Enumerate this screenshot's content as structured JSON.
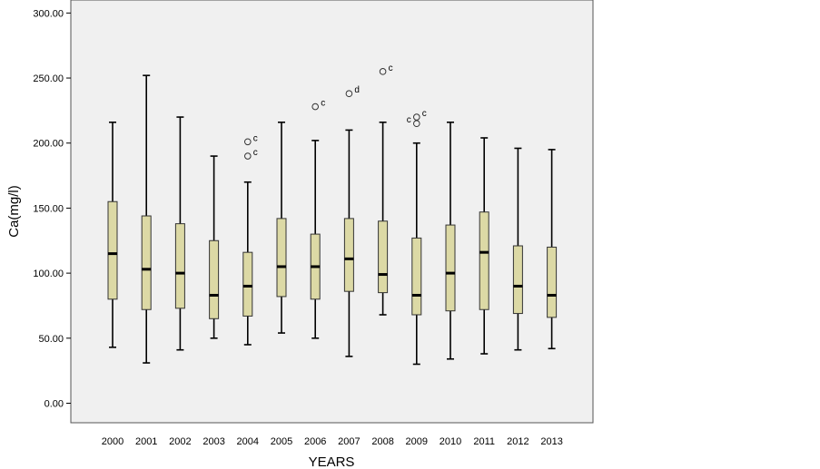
{
  "chart_data": {
    "type": "boxplot",
    "xlabel": "YEARS",
    "ylabel": "Ca(mg/l)",
    "ylim": [
      -15,
      310
    ],
    "yticks": [
      0,
      50,
      100,
      150,
      200,
      250,
      300
    ],
    "ytick_labels": [
      "0.00",
      "50.00",
      "100.00",
      "150.00",
      "200.00",
      "250.00",
      "300.00"
    ],
    "grid": false,
    "background": "#f0f0f0",
    "box_color": "#dcd9a5",
    "categories": [
      "2000",
      "2001",
      "2002",
      "2003",
      "2004",
      "2005",
      "2006",
      "2007",
      "2008",
      "2009",
      "2010",
      "2011",
      "2012",
      "2013"
    ],
    "boxes": [
      {
        "min": 43,
        "q1": 80,
        "median": 115,
        "q3": 155,
        "max": 216
      },
      {
        "min": 31,
        "q1": 72,
        "median": 103,
        "q3": 144,
        "max": 252
      },
      {
        "min": 41,
        "q1": 73,
        "median": 100,
        "q3": 138,
        "max": 220
      },
      {
        "min": 50,
        "q1": 65,
        "median": 83,
        "q3": 125,
        "max": 190
      },
      {
        "min": 45,
        "q1": 67,
        "median": 90,
        "q3": 116,
        "max": 170
      },
      {
        "min": 54,
        "q1": 82,
        "median": 105,
        "q3": 142,
        "max": 216
      },
      {
        "min": 50,
        "q1": 80,
        "median": 105,
        "q3": 130,
        "max": 202
      },
      {
        "min": 36,
        "q1": 86,
        "median": 111,
        "q3": 142,
        "max": 210
      },
      {
        "min": 68,
        "q1": 85,
        "median": 99,
        "q3": 140,
        "max": 216
      },
      {
        "min": 30,
        "q1": 68,
        "median": 83,
        "q3": 127,
        "max": 200
      },
      {
        "min": 34,
        "q1": 71,
        "median": 100,
        "q3": 137,
        "max": 216
      },
      {
        "min": 38,
        "q1": 72,
        "median": 116,
        "q3": 147,
        "max": 204
      },
      {
        "min": 41,
        "q1": 69,
        "median": 90,
        "q3": 121,
        "max": 196
      },
      {
        "min": 42,
        "q1": 66,
        "median": 83,
        "q3": 120,
        "max": 195
      }
    ],
    "outliers": [
      {
        "category": "2004",
        "value": 201,
        "label": "c",
        "label_side": "right"
      },
      {
        "category": "2004",
        "value": 190,
        "label": "c",
        "label_side": "right"
      },
      {
        "category": "2006",
        "value": 228,
        "label": "c",
        "label_side": "right"
      },
      {
        "category": "2007",
        "value": 238,
        "label": "d",
        "label_side": "right"
      },
      {
        "category": "2008",
        "value": 255,
        "label": "c",
        "label_side": "right"
      },
      {
        "category": "2009",
        "value": 220,
        "label": "c",
        "label_side": "right"
      },
      {
        "category": "2009",
        "value": 215,
        "label": "c",
        "label_side": "left"
      }
    ]
  }
}
